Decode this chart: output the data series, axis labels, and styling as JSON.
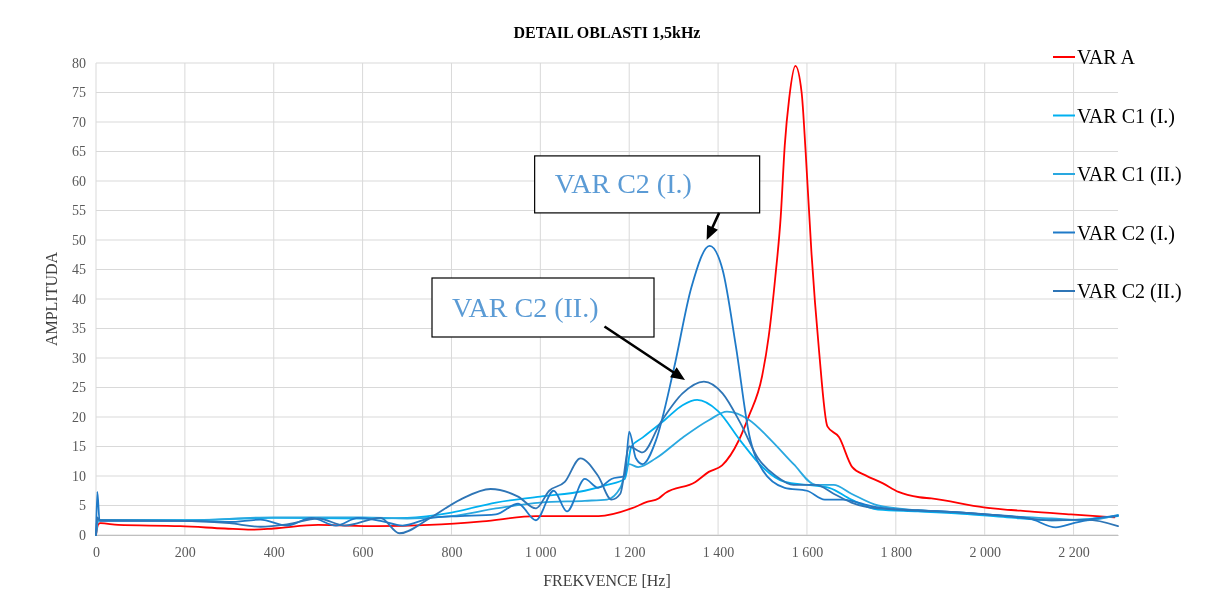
{
  "chart_data": {
    "type": "line",
    "title": "DETAIL OBLASTI 1,5kHz",
    "xlabel": "FREKVENCE [Hz]",
    "ylabel": "AMPLITUDA",
    "xlim": [
      0,
      2300
    ],
    "xticks": [
      0,
      200,
      400,
      600,
      800,
      {
        "value": 1000,
        "label": "1 000"
      },
      {
        "value": 1200,
        "label": "1 200"
      },
      {
        "value": 1400,
        "label": "1 400"
      },
      {
        "value": 1600,
        "label": "1 600"
      },
      {
        "value": 1800,
        "label": "1 800"
      },
      {
        "value": 2000,
        "label": "2 000"
      },
      {
        "value": 2200,
        "label": "2 200"
      }
    ],
    "ylim": [
      0,
      80
    ],
    "yticks": [
      0,
      5,
      10,
      15,
      20,
      25,
      30,
      35,
      40,
      45,
      50,
      55,
      60,
      65,
      70,
      75,
      80
    ],
    "grid": true,
    "legend": "right",
    "line_style": "solid",
    "annotations": [
      {
        "text": "VAR C2 (I.)",
        "x": 1381,
        "y": 49
      },
      "VAR C2 (II.)"
    ],
    "series": [
      {
        "name": "VAR A",
        "color": "#ff0000",
        "x": [
          0,
          5,
          10,
          50,
          190,
          290,
          350,
          400,
          500,
          630,
          750,
          870,
          990,
          1131,
          1205,
          1240,
          1266,
          1281,
          1349,
          1379,
          1409,
          1447,
          1469,
          1499,
          1514,
          1529,
          1541,
          1550,
          1560,
          1574,
          1588,
          1597,
          1610,
          1627,
          1646,
          1672,
          1702,
          1732,
          1770,
          1806,
          1853,
          1880,
          1998,
          2100,
          2194,
          2292
        ],
        "values": [
          0,
          1.8,
          2.0,
          1.7,
          1.5,
          1.1,
          0.9,
          1.1,
          1.7,
          1.5,
          1.7,
          2.3,
          3.2,
          3.2,
          4.5,
          5.6,
          6.2,
          7.1,
          9.0,
          10.7,
          11.8,
          16.1,
          20.1,
          26.9,
          33.7,
          43.9,
          54,
          66,
          74,
          79.5,
          75,
          65,
          48,
          31.4,
          18.4,
          16.6,
          11.5,
          10.1,
          8.8,
          7.3,
          6.4,
          6.2,
          4.7,
          4.0,
          3.5,
          3.0
        ]
      },
      {
        "name": "VAR C1 (I.)",
        "color": "#00b0f0",
        "x": [
          0,
          5,
          200,
          400,
          600,
          700,
          800,
          900,
          1000,
          1100,
          1150,
          1190,
          1205,
          1230,
          1280,
          1320,
          1353,
          1400,
          1450,
          1500,
          1550,
          1600,
          1650,
          1700,
          1760,
          1850,
          1950,
          2050,
          2150,
          2230,
          2300
        ],
        "values": [
          0,
          2.5,
          2.5,
          2.9,
          2.8,
          2.9,
          3.8,
          5.5,
          6.5,
          7.5,
          8.5,
          9.5,
          15,
          16.5,
          19.5,
          22,
          22.9,
          21,
          16,
          11.5,
          9,
          8.5,
          8,
          6,
          4.3,
          4,
          3.6,
          3,
          2.5,
          2.7,
          3.2
        ]
      },
      {
        "name": "VAR C1 (II.)",
        "color": "#29a8e0",
        "x": [
          0,
          5,
          200,
          400,
          600,
          700,
          800,
          900,
          1000,
          1100,
          1150,
          1180,
          1200,
          1220,
          1260,
          1320,
          1380,
          1420,
          1470,
          1520,
          1570,
          1620,
          1660,
          1700,
          1760,
          1850,
          1950,
          2050,
          2150,
          2230,
          2300
        ],
        "values": [
          0,
          2.5,
          2.5,
          3.0,
          3.0,
          2.8,
          3.2,
          4.5,
          5.5,
          5.8,
          6.0,
          8,
          12,
          11.5,
          13,
          16.5,
          19.5,
          20.9,
          19.5,
          16,
          12,
          8.5,
          8.5,
          7,
          5,
          4.2,
          3.8,
          3.2,
          2.8,
          2.5,
          3.4
        ]
      },
      {
        "name": "VAR C2 (I.)",
        "color": "#1f7ac8",
        "x": [
          0,
          3,
          8,
          190,
          300,
          370,
          430,
          485,
          540,
          590,
          640,
          690,
          760,
          820,
          900,
          950,
          990,
          1030,
          1060,
          1100,
          1130,
          1160,
          1190,
          1200,
          1215,
          1230,
          1260,
          1300,
          1340,
          1381,
          1410,
          1440,
          1470,
          1500,
          1550,
          1600,
          1640,
          1680,
          1750,
          1800,
          1900,
          2000,
          2100,
          2160,
          2200,
          2250,
          2300
        ],
        "values": [
          0,
          7.3,
          2.4,
          2.4,
          2.2,
          2.6,
          1.6,
          2.9,
          1.6,
          2.9,
          2.4,
          1.6,
          3.0,
          3.2,
          3.5,
          5.3,
          2.5,
          7.5,
          4.0,
          9.5,
          8.0,
          9.5,
          10,
          17.5,
          13,
          12,
          16,
          28,
          42,
          49,
          45,
          32,
          17,
          11,
          8,
          7.5,
          6,
          6,
          4.8,
          4.3,
          4,
          3.5,
          2.8,
          1.3,
          2.0,
          2.8,
          3.3
        ]
      },
      {
        "name": "VAR C2 (II.)",
        "color": "#2e75b6",
        "x": [
          0,
          3,
          8,
          200,
          300,
          370,
          430,
          500,
          560,
          640,
          683,
          750,
          820,
          888,
          950,
          990,
          1020,
          1055,
          1090,
          1130,
          1160,
          1180,
          1200,
          1230,
          1270,
          1320,
          1368,
          1410,
          1450,
          1490,
          1530,
          1570,
          1620,
          1660,
          1700,
          1760,
          1850,
          1950,
          2050,
          2150,
          2230,
          2300
        ],
        "values": [
          0,
          3,
          2.5,
          2.4,
          2.0,
          1.4,
          1.8,
          2.8,
          1.6,
          2.9,
          0.3,
          2.8,
          6.0,
          7.8,
          6.5,
          4.5,
          7.5,
          9,
          13,
          10,
          6,
          7,
          15,
          14,
          19,
          24,
          26,
          24,
          19,
          13,
          10,
          8.5,
          8.5,
          7,
          5.5,
          4.5,
          4.2,
          3.8,
          3.2,
          2.5,
          2.6,
          1.5
        ]
      }
    ]
  }
}
